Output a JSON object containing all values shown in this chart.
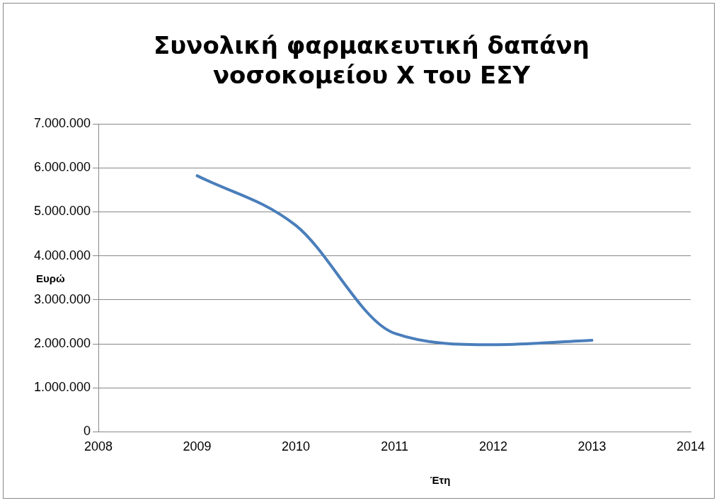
{
  "chart_data": {
    "type": "line",
    "title": "Συνολική φαρμακευτική δαπάνη νοσοκομείου Χ του ΕΣΥ",
    "xlabel": "Έτη",
    "ylabel": "Ευρώ",
    "x": [
      2009,
      2010,
      2011,
      2012,
      2013
    ],
    "series": [
      {
        "color": "#4a7ebb",
        "values": [
          5820000,
          4690000,
          2240000,
          1980000,
          2080000
        ]
      }
    ],
    "xlim": [
      2008,
      2014
    ],
    "xticks": [
      2008,
      2009,
      2010,
      2011,
      2012,
      2013,
      2014
    ],
    "ylim": [
      0,
      7000000
    ],
    "yticks": [
      0,
      {
        "value": 1000000,
        "label": "1.000.000"
      },
      {
        "value": 2000000,
        "label": "2.000.000"
      },
      {
        "value": 3000000,
        "label": "3.000.000"
      },
      {
        "value": 4000000,
        "label": "4.000.000"
      },
      {
        "value": 5000000,
        "label": "5.000.000"
      },
      {
        "value": 6000000,
        "label": "6.000.000"
      },
      {
        "value": 7000000,
        "label": "7.000.000"
      }
    ],
    "grid": "y",
    "legend": false,
    "marker": "none",
    "line_style": "solid"
  }
}
